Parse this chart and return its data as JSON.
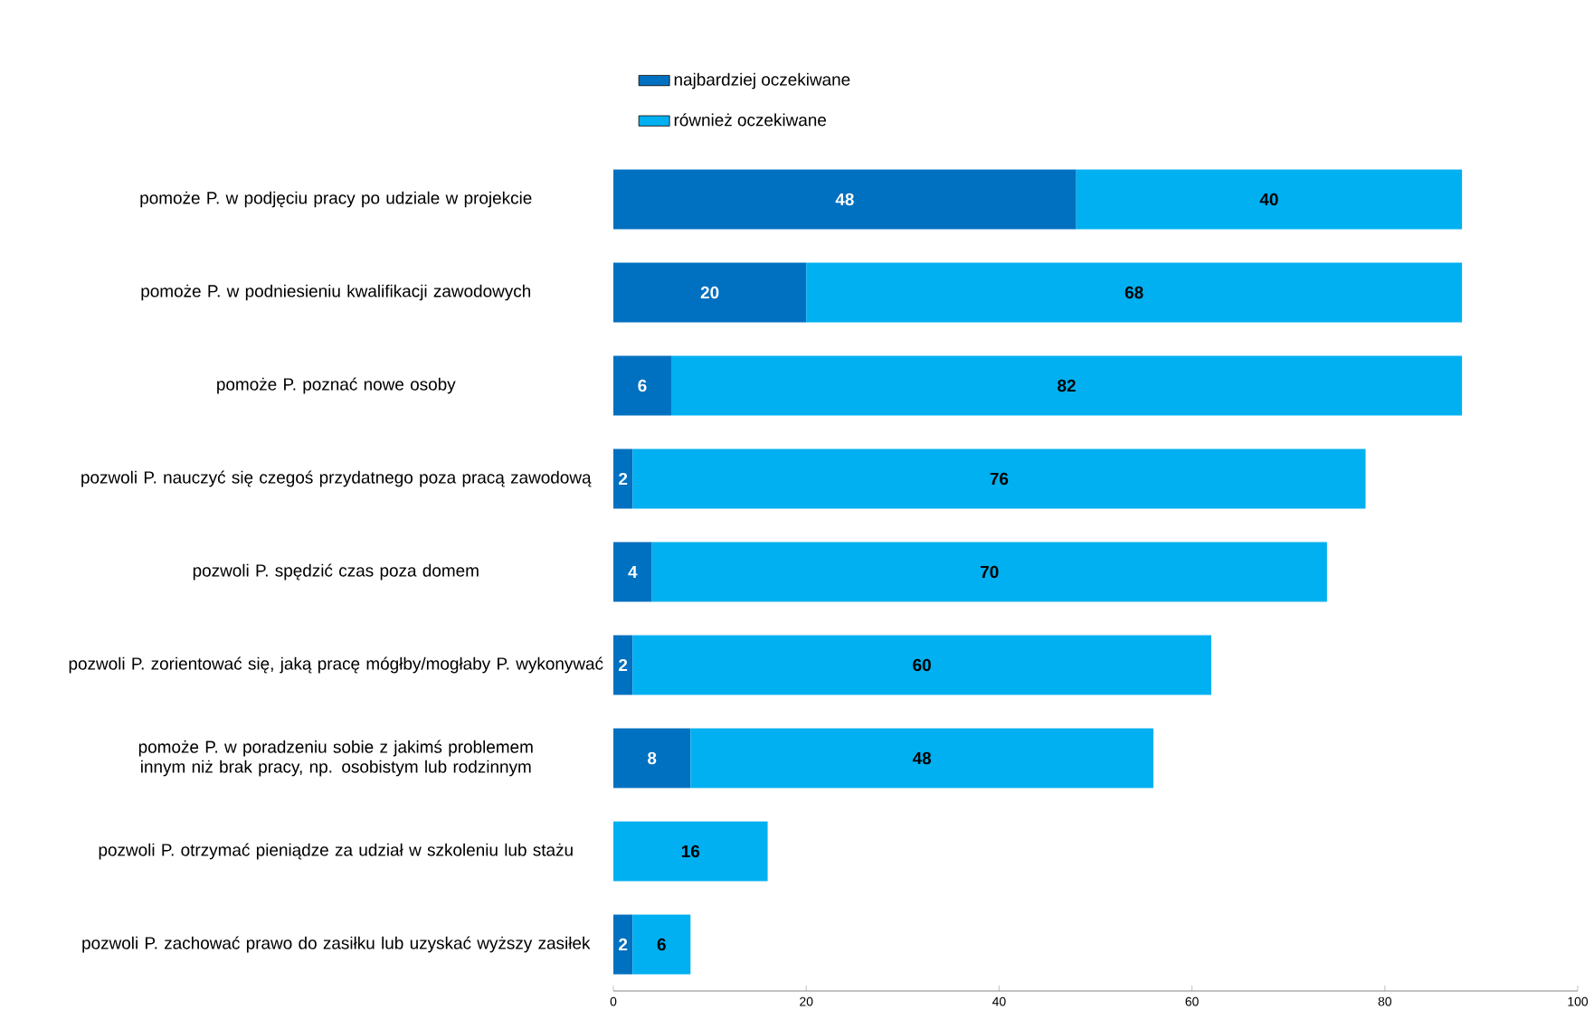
{
  "chart_data": {
    "type": "bar",
    "orientation": "horizontal",
    "stacked": true,
    "categories": [
      "pomoże P. w podjęciu pracy po udziale w projekcie",
      "pomoże P. w podniesieniu kwalifikacji zawodowych",
      "pomoże P. poznać nowe osoby",
      "pozwoli P. nauczyć się czegoś przydatnego poza pracą zawodową",
      "pozwoli P. spędzić czas poza domem",
      "pozwoli P. zorientować się, jaką pracę mógłby/mogłaby P. wykonywać",
      "pomoże P. w poradzeniu sobie z jakimś problemem innym niż brak pracy, np. osobistym lub rodzinnym",
      "pozwoli P. otrzymać pieniądze za udział w szkoleniu lub stażu",
      "pozwoli P. zachować prawo do zasiłku lub uzyskać wyższy zasiłek"
    ],
    "series": [
      {
        "name": "najbardziej oczekiwane",
        "color": "#0070c0",
        "values": [
          48,
          20,
          6,
          2,
          4,
          2,
          8,
          null,
          2
        ]
      },
      {
        "name": "również oczekiwane",
        "color": "#00b0f0",
        "values": [
          40,
          68,
          82,
          76,
          70,
          60,
          48,
          16,
          6
        ]
      }
    ],
    "xlim": [
      0,
      100
    ],
    "xticks": [
      0,
      20,
      40,
      60,
      80,
      100
    ],
    "data_labels": true,
    "legend": "top",
    "grid": false
  }
}
